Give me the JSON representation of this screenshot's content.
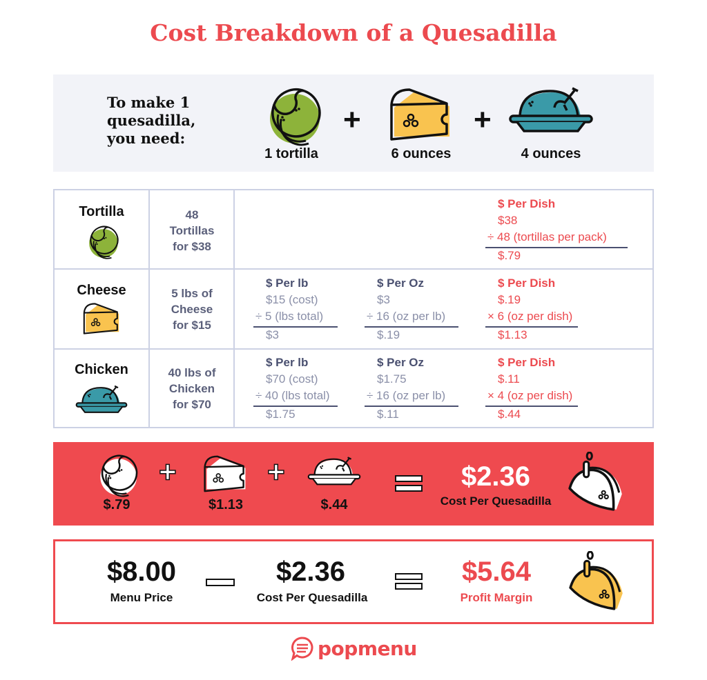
{
  "title": "Cost Breakdown of a Quesadilla",
  "intro": {
    "label": [
      "To make 1",
      "quesadilla,",
      "you need:"
    ],
    "items": [
      {
        "icon": "tortilla-icon",
        "qty": "1 tortilla"
      },
      {
        "icon": "cheese-icon",
        "qty": "6 ounces"
      },
      {
        "icon": "chicken-icon",
        "qty": "4 ounces"
      }
    ],
    "plus": "+"
  },
  "colors": {
    "accent": "#ec4a4f",
    "tortilla": "#8db33a",
    "cheese": "#f9c34f",
    "chicken": "#3a9aa8",
    "panel": "#f2f3f8",
    "grid": "#ccd1e4"
  },
  "table": {
    "rows": [
      {
        "name": "Tortilla",
        "purchase": [
          "48",
          "Tortillas",
          "for $38"
        ],
        "dish": {
          "header": "$ Per Dish",
          "l1": "$38",
          "l2": "÷ 48 (tortillas per pack)",
          "res": "$.79"
        }
      },
      {
        "name": "Cheese",
        "purchase": [
          "5 lbs of",
          "Cheese",
          "for $15"
        ],
        "lb": {
          "header": "$ Per lb",
          "l1": "$15 (cost)",
          "l2": "÷ 5 (lbs total)",
          "res": "$3"
        },
        "oz": {
          "header": "$ Per Oz",
          "l1": "$3",
          "l2": "÷ 16 (oz per lb)",
          "res": "$.19"
        },
        "dish": {
          "header": "$ Per Dish",
          "l1": "$.19",
          "l2": "× 6 (oz per dish)",
          "res": "$1.13"
        }
      },
      {
        "name": "Chicken",
        "purchase": [
          "40 lbs of",
          "Chicken",
          "for $70"
        ],
        "lb": {
          "header": "$ Per lb",
          "l1": "$70 (cost)",
          "l2": "÷ 40 (lbs total)",
          "res": "$1.75"
        },
        "oz": {
          "header": "$ Per Oz",
          "l1": "$1.75",
          "l2": "÷ 16 (oz per lb)",
          "res": "$.11"
        },
        "dish": {
          "header": "$ Per Dish",
          "l1": "$.11",
          "l2": "× 4 (oz per dish)",
          "res": "$.44"
        }
      }
    ]
  },
  "sum": {
    "prices": [
      "$.79",
      "$1.13",
      "$.44"
    ],
    "total": "$2.36",
    "total_label": "Cost Per Quesadilla"
  },
  "profit": {
    "menu_price": "$8.00",
    "menu_label": "Menu Price",
    "cost": "$2.36",
    "cost_label": "Cost Per Quesadilla",
    "margin": "$5.64",
    "margin_label": "Profit Margin"
  },
  "logo": "popmenu"
}
